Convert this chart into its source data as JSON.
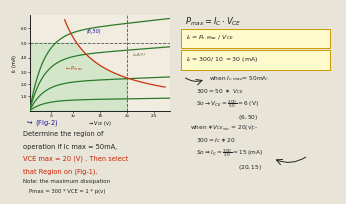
{
  "bg_color": "#e8e4d8",
  "graph_bg": "#f0ece0",
  "green": "#2a7a2a",
  "red": "#cc3311",
  "blue": "#1a1a99",
  "dark": "#222222",
  "yellow_box": "#fffacc",
  "box_border": "#cc9900",
  "left_text_color": "#1a1a99",
  "red_text": "#cc2200",
  "graph": {
    "xlim": [
      0,
      26
    ],
    "ylim": [
      0,
      65
    ],
    "x_ticks_pos": [
      4,
      8,
      13,
      18,
      23
    ],
    "x_tick_labels": [
      ".5",
      "1v",
      "15",
      "2v",
      "2.5"
    ],
    "y_ticks_pos": [
      10,
      18,
      26,
      36,
      46,
      56
    ],
    "y_tick_labels": [
      "1.0",
      "2.0",
      "3.0",
      "4.0",
      "5.0",
      "6.0"
    ],
    "curve_flat_levels": [
      52,
      36,
      19,
      7
    ],
    "vce_max_line": 18,
    "ic_max_line": 46,
    "pmax_k": 400
  },
  "right": {
    "title": "Pmax = Ic*VCE",
    "box1": "Ic = Pc.Max / VCE",
    "box2": "Ic = 300/ 10  = 30 (mA)",
    "arrow_text": "when Ic.max = 50mA:",
    "c1a": "300 = 50 * VCE",
    "c1b": "So -> VCE = 300/50 = 6 (V)",
    "lbl1": "(6, 50)",
    "c2h": "when VCE max = 20(v):",
    "c2a": "300 = Ic *20",
    "c2b": "So=> Ic = 300/20 = 15(mA)",
    "lbl2": "(20, 15)"
  },
  "bottom_left": {
    "arrow_label": "(Fig-2)",
    "line1": "Determine the region of",
    "line2": "operation if Ic max = 50mA,",
    "line3": "VCE max = 20 (V) . Then select",
    "line4": "that Region on (Fig-1).",
    "line5": "Note: the maximum dissipation",
    "line6": "Pmax = 300 * VCE = 1 * p(v)"
  }
}
